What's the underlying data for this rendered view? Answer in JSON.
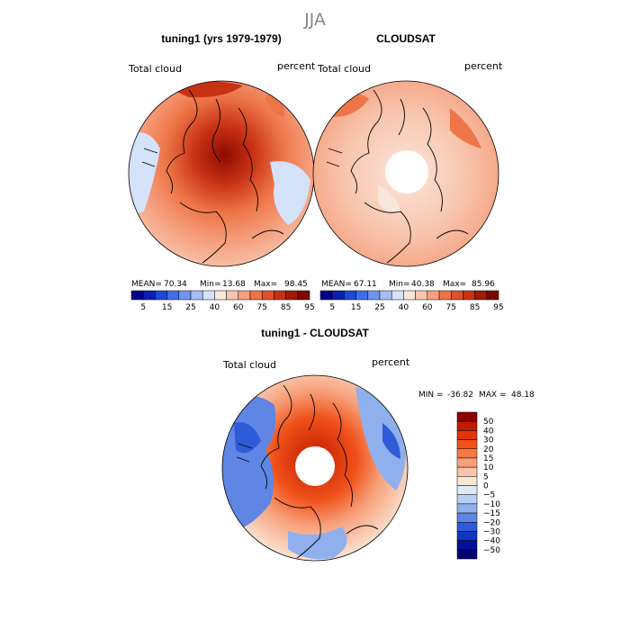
{
  "chart_data": {
    "type": "heatmap",
    "title": "JJA",
    "panels": [
      {
        "title": "tuning1 (yrs 1979-1979)",
        "field_label": "Total cloud",
        "units": "percent",
        "stats": {
          "mean_label": "MEAN=",
          "mean": "70.34",
          "min_label": "Min=",
          "min": "13.68",
          "max_label": "Max=",
          "max": "98.45"
        },
        "colorbar_labels": [
          "5",
          "15",
          "25",
          "40",
          "60",
          "75",
          "85",
          "95"
        ],
        "colors": [
          "#00008b",
          "#0a1fb0",
          "#1e48dc",
          "#3f6fe8",
          "#6f95ef",
          "#a3bff5",
          "#d4e2fa",
          "#fbe6dc",
          "#f8c5ad",
          "#f5a07f",
          "#ee7548",
          "#e0502a",
          "#c83214",
          "#a01a05",
          "#7a0a00"
        ],
        "features": [
          "polar stereographic projection",
          "coastlines",
          "north polar region"
        ]
      },
      {
        "title": "CLOUDSAT",
        "field_label": "Total cloud",
        "units": "percent",
        "stats": {
          "mean_label": "MEAN=",
          "mean": "67.11",
          "min_label": "Min=",
          "min": "40.38",
          "max_label": "Max=",
          "max": "85.96"
        },
        "colorbar_labels": [
          "5",
          "15",
          "25",
          "40",
          "60",
          "75",
          "85",
          "95"
        ],
        "colors": [
          "#00008b",
          "#0a1fb0",
          "#1e48dc",
          "#3f6fe8",
          "#6f95ef",
          "#a3bff5",
          "#d4e2fa",
          "#fbe6dc",
          "#f8c5ad",
          "#f5a07f",
          "#ee7548",
          "#e0502a",
          "#c83214",
          "#a01a05",
          "#7a0a00"
        ],
        "features": [
          "missing data over pole (white circle)"
        ]
      },
      {
        "title": "tuning1 - CLOUDSAT",
        "field_label": "Total cloud",
        "units": "percent",
        "minmax": {
          "min_label": "MIN =",
          "min": "-36.82",
          "max_label": "MAX =",
          "max": "48.18"
        },
        "colorbar_labels": [
          "50",
          "40",
          "30",
          "20",
          "15",
          "10",
          "5",
          "0",
          "−5",
          "−10",
          "−15",
          "−20",
          "−30",
          "−40",
          "−50"
        ],
        "colors": [
          "#8b0000",
          "#c41a00",
          "#e0340a",
          "#f0521a",
          "#f47a45",
          "#f7a07a",
          "#f9c4a8",
          "#fbe6d6",
          "#ddeaf8",
          "#b8cff2",
          "#8fb0ec",
          "#5f86e4",
          "#2f5bd8",
          "#0f38c0",
          "#00129a",
          "#000070"
        ]
      }
    ]
  }
}
